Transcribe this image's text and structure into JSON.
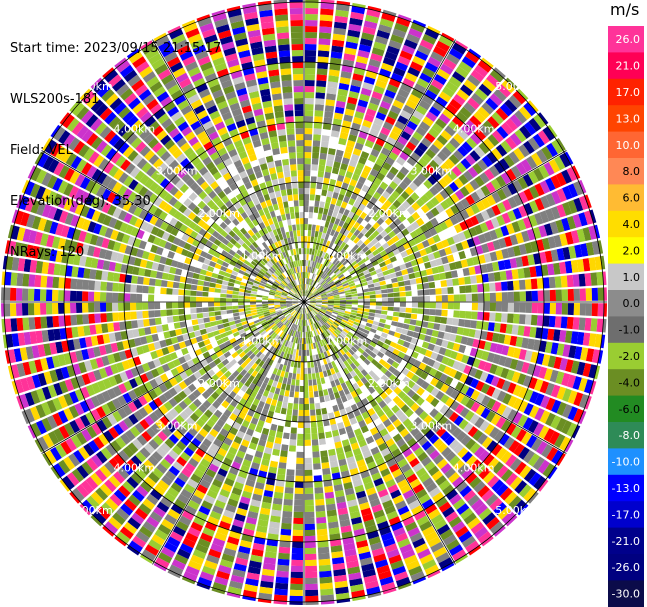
{
  "header": {
    "start_time": "Start time: 2023/09/15 21:15:17",
    "instrument": "WLS200s-181",
    "field": "Field: VEL",
    "elevation": "Elevation(deg): 35.30",
    "nrays": "NRays: 120"
  },
  "chart_data": {
    "type": "heatmap",
    "projection": "PPI polar",
    "field": "VEL",
    "units": "m/s",
    "nrays": 120,
    "range_ring_labels": [
      "1.00km",
      "2.00km",
      "3.00km",
      "4.00km",
      "5.00km"
    ],
    "colorbar": {
      "title": "m/s",
      "ticks": [
        "26.0",
        "21.0",
        "17.0",
        "13.0",
        "10.0",
        "8.0",
        "6.0",
        "4.0",
        "2.0",
        "1.0",
        "0.0",
        "-1.0",
        "-2.0",
        "-4.0",
        "-6.0",
        "-8.0",
        "-10.0",
        "-13.0",
        "-17.0",
        "-21.0",
        "-26.0",
        "-30.0"
      ],
      "colors": [
        "#ff3399",
        "#ff0055",
        "#ff2200",
        "#ff4400",
        "#ff6633",
        "#ff8855",
        "#ffbb33",
        "#ffdd00",
        "#ffff00",
        "#c8c8c8",
        "#8c8c8c",
        "#6e6e6e",
        "#9acd32",
        "#6b8e23",
        "#228b22",
        "#2e8b57",
        "#1e90ff",
        "#0000ff",
        "#0000cd",
        "#00008b",
        "#000080",
        "#0b0b4a"
      ]
    }
  },
  "colors": {
    "grid_line": "#000000",
    "range_label": "#ffffff",
    "near_field": "#808080",
    "outer_noise": [
      "#ff0000",
      "#ff3399",
      "#0000ff",
      "#9acd32",
      "#ffd700",
      "#808080",
      "#000080",
      "#cc33cc",
      "#6b8e23"
    ]
  }
}
